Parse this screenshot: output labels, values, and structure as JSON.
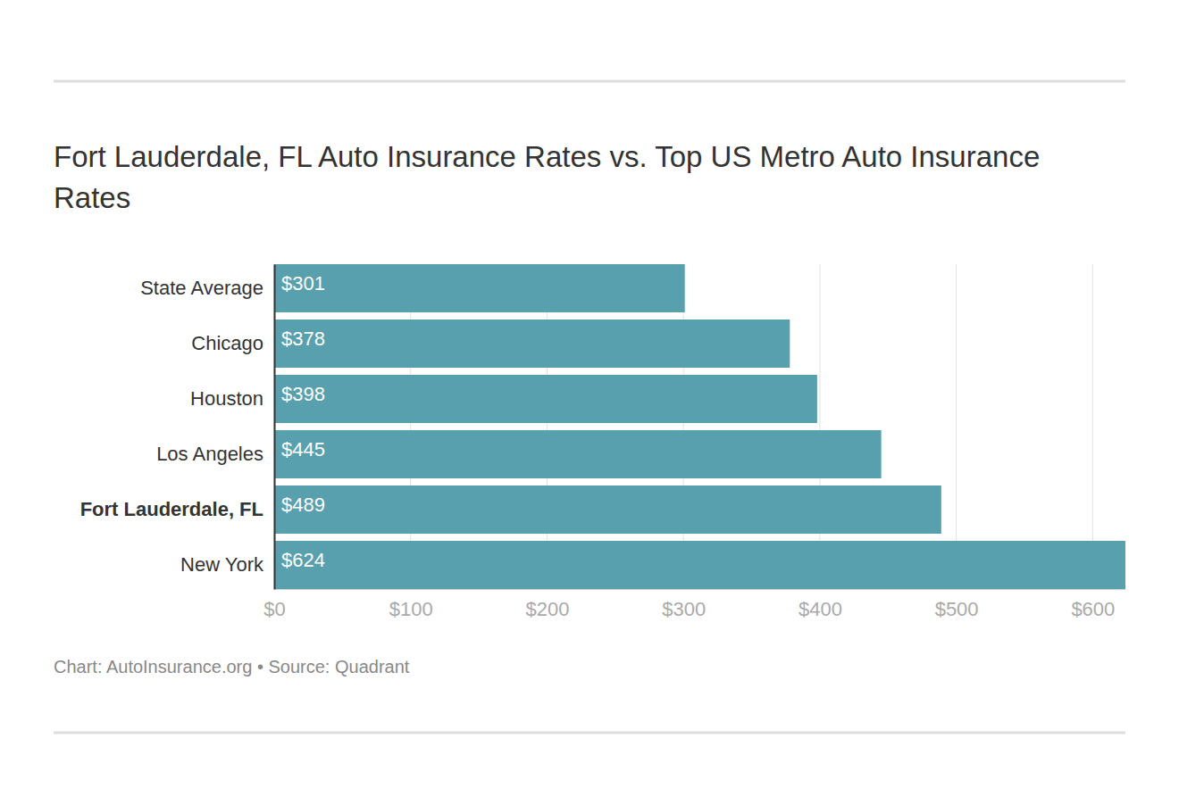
{
  "chart_data": {
    "type": "bar",
    "orientation": "horizontal",
    "title": "Fort Lauderdale, FL Auto Insurance Rates vs. Top US Metro Auto Insurance Rates",
    "source": "Chart: AutoInsurance.org • Source: Quadrant",
    "categories": [
      "State Average",
      "Chicago",
      "Houston",
      "Los Angeles",
      "Fort Lauderdale, FL",
      "New York"
    ],
    "values": [
      301,
      378,
      398,
      445,
      489,
      624
    ],
    "value_labels": [
      "$301",
      "$378",
      "$398",
      "$445",
      "$489",
      "$624"
    ],
    "color": "#58a0ae",
    "xlim": [
      0,
      624
    ],
    "xticks": [
      {
        "value": 0,
        "label": "$0"
      },
      {
        "value": 100,
        "label": "$100"
      },
      {
        "value": 200,
        "label": "$200"
      },
      {
        "value": 300,
        "label": "$300"
      },
      {
        "value": 400,
        "label": "$400"
      },
      {
        "value": 500,
        "label": "$500"
      },
      {
        "value": 600,
        "label": "$600"
      }
    ],
    "grid": true,
    "data_labels": true
  }
}
